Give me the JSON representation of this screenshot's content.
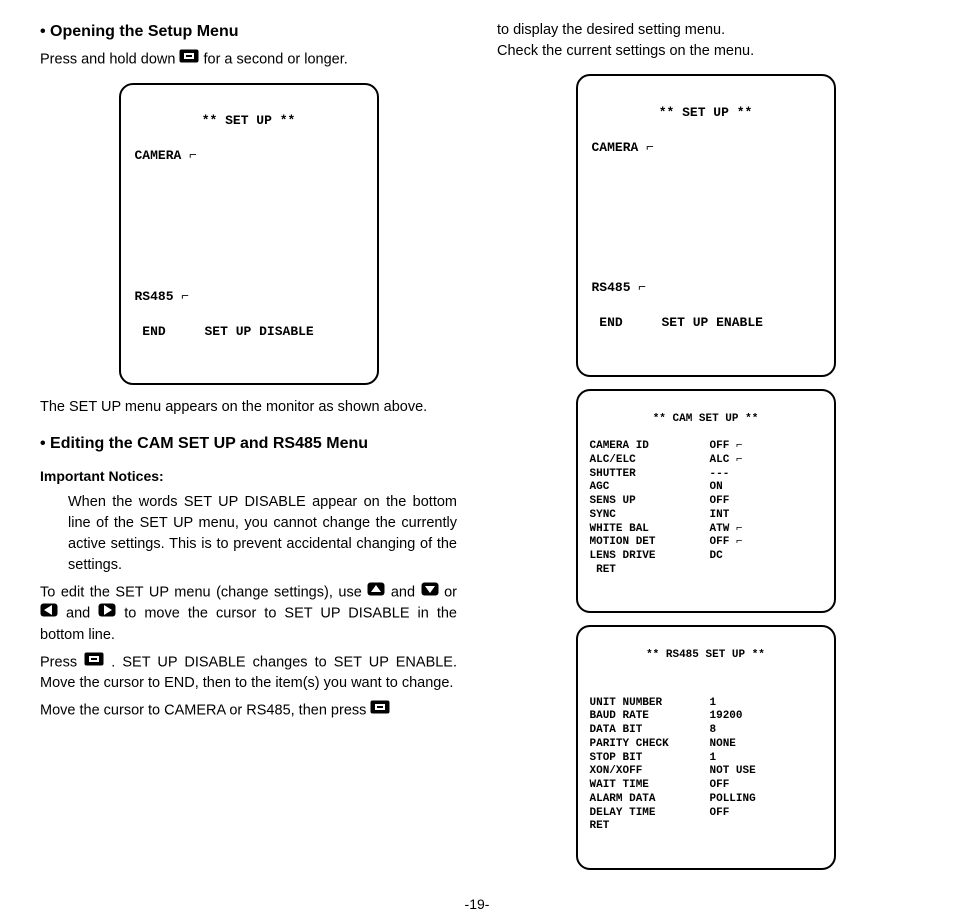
{
  "left": {
    "heading1": "Opening the Setup Menu",
    "p1a": "Press and hold down ",
    "p1b": " for a second or longer.",
    "box1": {
      "title": "** SET UP **",
      "l1": "CAMERA ⌐",
      "l2": "RS485 ⌐",
      "l3a": " END",
      "l3b": "SET UP DISABLE"
    },
    "p2": "The SET UP menu appears on the monitor as shown above.",
    "heading2": "Editing the CAM SET UP and RS485 Menu",
    "notices": "Important Notices:",
    "n1": "When the words SET UP DISABLE appear on the bottom line of the SET UP menu, you cannot change the currently active settings. This is to prevent accidental changing of the settings.",
    "p3a": "To edit the SET UP menu (change settings), use ",
    "p3b": " and ",
    "p3c": " or ",
    "p3d": " and ",
    "p3e": " to move the cursor to SET UP DISABLE in the bottom line.",
    "p4a": "Press ",
    "p4b": " . SET UP DISABLE changes to SET UP ENABLE. Move the cursor to END, then to the item(s) you want to change.",
    "p5a": "Move the cursor to CAMERA or RS485, then press ",
    "p5b": ""
  },
  "right": {
    "p1": "to display the desired setting menu.",
    "p2": "Check the current settings on the menu.",
    "box2": {
      "title": "** SET UP **",
      "l1": "CAMERA ⌐",
      "l2": "RS485 ⌐",
      "l3a": " END",
      "l3b": "SET UP ENABLE"
    },
    "box3": {
      "title": "** CAM SET UP **",
      "rows": [
        [
          "CAMERA ID",
          "OFF ⌐"
        ],
        [
          "ALC/ELC",
          "ALC ⌐"
        ],
        [
          "SHUTTER",
          "---"
        ],
        [
          "AGC",
          "ON"
        ],
        [
          "SENS UP",
          "OFF"
        ],
        [
          "SYNC",
          "INT"
        ],
        [
          "WHITE BAL",
          "ATW ⌐"
        ],
        [
          "MOTION DET",
          "OFF ⌐"
        ],
        [
          "LENS DRIVE",
          "DC"
        ],
        [
          " RET",
          ""
        ]
      ]
    },
    "box4": {
      "title": "** RS485 SET UP **",
      "rows": [
        [
          "UNIT NUMBER",
          "1"
        ],
        [
          "BAUD RATE",
          "19200"
        ],
        [
          "DATA BIT",
          "8"
        ],
        [
          "PARITY CHECK",
          "NONE"
        ],
        [
          "STOP BIT",
          "1"
        ],
        [
          "XON/XOFF",
          "NOT USE"
        ],
        [
          "WAIT TIME",
          "OFF"
        ],
        [
          "ALARM DATA",
          "POLLING"
        ],
        [
          "DELAY TIME",
          "OFF"
        ],
        [
          "RET",
          ""
        ]
      ]
    }
  },
  "pagenum": "-19-",
  "icons": {
    "menu": "menu-button-icon",
    "up": "up-arrow-icon",
    "down": "down-arrow-icon",
    "left": "left-arrow-icon",
    "right": "right-arrow-icon"
  }
}
